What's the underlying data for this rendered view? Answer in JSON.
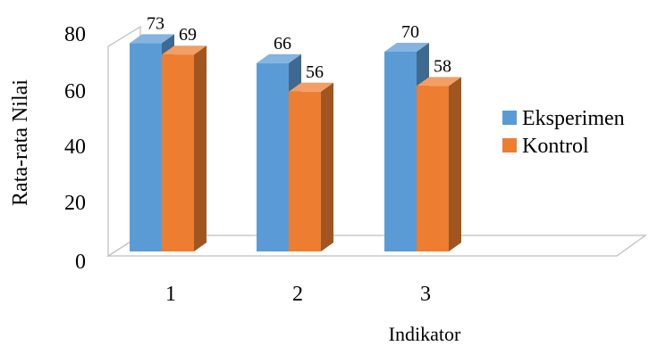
{
  "chart_data": {
    "type": "bar",
    "style": "3d-clustered-column",
    "title": "",
    "xlabel": "Indikator",
    "ylabel": "Rata-rata Nilai",
    "categories": [
      "1",
      "2",
      "3"
    ],
    "series": [
      {
        "name": "Eksperimen",
        "values": [
          73,
          66,
          70
        ],
        "color": "#5b9bd5"
      },
      {
        "name": "Kontrol",
        "values": [
          69,
          56,
          58
        ],
        "color": "#ed7d31"
      }
    ],
    "ylim": [
      0,
      80
    ],
    "yticks": [
      "0",
      "20",
      "40",
      "60",
      "80"
    ],
    "grid": false,
    "legend": "right",
    "data_labels": true
  }
}
